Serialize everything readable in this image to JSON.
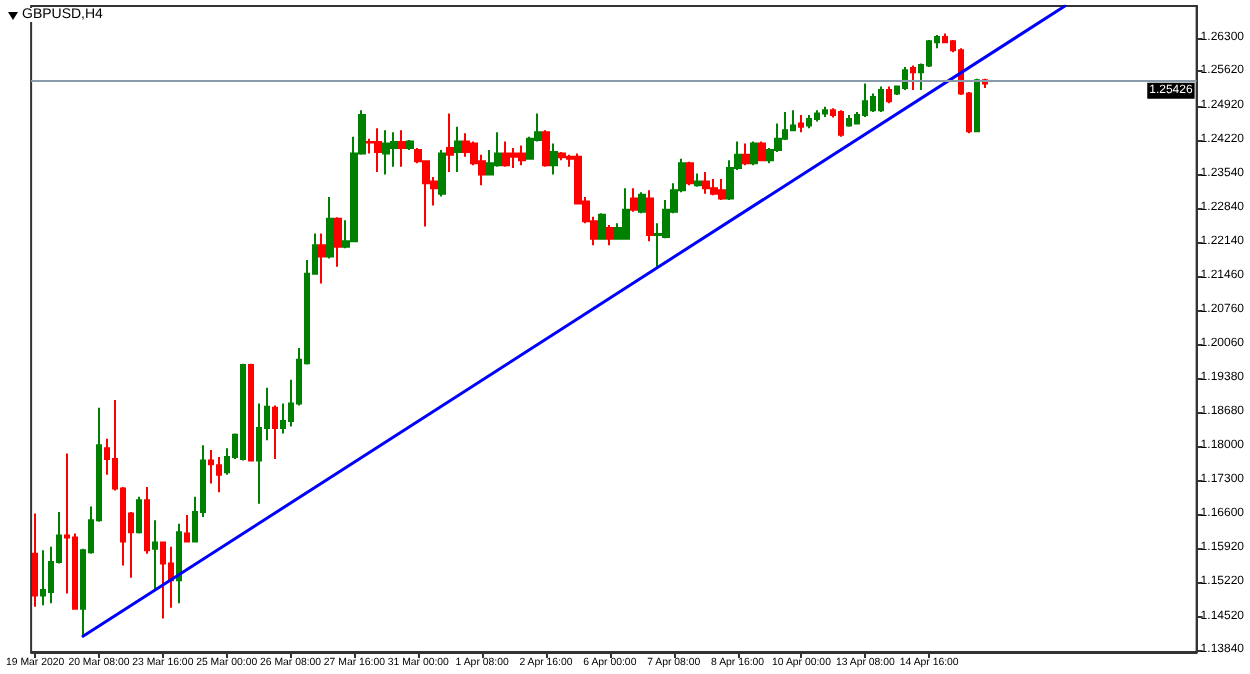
{
  "chart_data": {
    "type": "candlestick",
    "title": "GBPUSD,H4",
    "categories": [
      "19 Mar 2020",
      null,
      null,
      null,
      null,
      null,
      null,
      null,
      "20 Mar 08:00",
      null,
      null,
      null,
      null,
      null,
      null,
      null,
      "23 Mar 16:00",
      null,
      null,
      null,
      null,
      null,
      null,
      null,
      "25 Mar 00:00",
      null,
      null,
      null,
      null,
      null,
      null,
      null,
      "26 Mar 08:00",
      null,
      null,
      null,
      null,
      null,
      null,
      null,
      "27 Mar 16:00",
      null,
      null,
      null,
      null,
      null,
      null,
      null,
      "31 Mar 00:00",
      null,
      null,
      null,
      null,
      null,
      null,
      null,
      "1 Apr 08:00",
      null,
      null,
      null,
      null,
      null,
      null,
      null,
      "2 Apr 16:00",
      null,
      null,
      null,
      null,
      null,
      null,
      null,
      "6 Apr 00:00",
      null,
      null,
      null,
      null,
      null,
      null,
      null,
      "7 Apr 08:00",
      null,
      null,
      null,
      null,
      null,
      null,
      null,
      "8 Apr 16:00",
      null,
      null,
      null,
      null,
      null,
      null,
      null,
      "10 Apr 00:00",
      null,
      null,
      null,
      null,
      null,
      null,
      null,
      "13 Apr 08:00",
      null,
      null,
      null,
      null,
      null,
      null,
      null,
      "14 Apr 16:00",
      null,
      null,
      null,
      null,
      null,
      null,
      null,
      null,
      null,
      null,
      null,
      null,
      null,
      null,
      null,
      null,
      null,
      null,
      null,
      null,
      null,
      null,
      null,
      null,
      null,
      null,
      null,
      null,
      null,
      null,
      null,
      null,
      null
    ],
    "series": [
      {
        "type": "candlestick",
        "colors": [
          "#ff0000",
          "#008000",
          "#008000",
          "#008000",
          "#ff0000",
          "#ff0000",
          "#008000",
          "#008000",
          "#008000",
          "#ff0000",
          "#ff0000",
          "#ff0000",
          "#ff0000",
          "#008000",
          "#ff0000",
          "#008000",
          "#ff0000",
          "#ff0000",
          "#008000",
          "#ff0000",
          "#008000",
          "#008000",
          "#ff0000",
          "#ff0000",
          "#008000",
          "#008000",
          "#008000",
          "#ff0000",
          "#008000",
          "#008000",
          "#ff0000",
          "#008000",
          "#008000",
          "#008000",
          "#008000",
          "#008000",
          "#ff0000",
          "#008000",
          "#ff0000",
          "#008000",
          "#008000",
          "#008000",
          "#ff0000",
          "#ff0000",
          "#008000",
          "#008000",
          "#ff0000",
          "#008000",
          "#ff0000",
          "#ff0000",
          "#ff0000",
          "#008000",
          "#ff0000",
          "#008000",
          "#ff0000",
          "#ff0000",
          "#ff0000",
          "#008000",
          "#008000",
          "#ff0000",
          "#ff0000",
          "#ff0000",
          "#008000",
          "#008000",
          "#ff0000",
          "#008000",
          "#ff0000",
          "#ff0000",
          "#ff0000",
          "#ff0000",
          "#ff0000",
          "#008000",
          "#ff0000",
          "#008000",
          "#008000",
          "#ff0000",
          "#008000",
          "#ff0000",
          "#008000",
          "#008000",
          "#008000",
          "#008000",
          "#ff0000",
          "#008000",
          "#ff0000",
          "#ff0000",
          "#ff0000",
          "#008000",
          "#008000",
          "#ff0000",
          "#008000",
          "#ff0000",
          "#008000",
          "#008000",
          "#008000",
          "#008000",
          "#ff0000",
          "#008000",
          "#008000",
          "#008000",
          "#ff0000",
          "#ff0000",
          "#008000",
          "#008000",
          "#008000",
          "#008000",
          "#008000",
          "#ff0000",
          "#008000",
          "#008000",
          "#ff0000",
          "#008000",
          "#008000",
          "#008000",
          "#ff0000",
          "#ff0000",
          "#ff0000",
          "#ff0000",
          "#008000",
          "#ff0000",
          null,
          null,
          null,
          null,
          null,
          null,
          null,
          null,
          null,
          null,
          null,
          null,
          null,
          null,
          null,
          null,
          null,
          null,
          null,
          null,
          null,
          null,
          null,
          null,
          null,
          null
        ],
        "ohlc": [
          [
            1.158,
            1.1662,
            1.1472,
            1.1495
          ],
          [
            1.1495,
            1.1587,
            1.1475,
            1.1506
          ],
          [
            1.1502,
            1.1594,
            1.1479,
            1.1563
          ],
          [
            1.1563,
            1.1665,
            1.156,
            1.1617
          ],
          [
            1.1617,
            1.1784,
            1.1499,
            1.1613
          ],
          [
            1.1613,
            1.1621,
            1.1466,
            1.1468
          ],
          [
            1.1468,
            1.159,
            1.1411,
            1.1587
          ],
          [
            1.1583,
            1.1676,
            1.158,
            1.1648
          ],
          [
            1.1648,
            1.1877,
            1.1645,
            1.1801
          ],
          [
            1.1795,
            1.1814,
            1.1741,
            1.1773
          ],
          [
            1.1773,
            1.1893,
            1.1709,
            1.1713
          ],
          [
            1.1713,
            1.1716,
            1.1556,
            1.1605
          ],
          [
            1.1662,
            1.1665,
            1.1531,
            1.1624
          ],
          [
            1.1624,
            1.1696,
            1.1621,
            1.1689
          ],
          [
            1.1689,
            1.1716,
            1.158,
            1.1587
          ],
          [
            1.159,
            1.1648,
            1.1506,
            1.1603
          ],
          [
            1.1603,
            1.1605,
            1.1448,
            1.156
          ],
          [
            1.156,
            1.1594,
            1.147,
            1.1526
          ],
          [
            1.1526,
            1.1641,
            1.1479,
            1.1624
          ],
          [
            1.1621,
            1.1659,
            1.1603,
            1.1605
          ],
          [
            1.1605,
            1.1696,
            1.1603,
            1.1665
          ],
          [
            1.1665,
            1.1801,
            1.1655,
            1.177
          ],
          [
            1.177,
            1.1791,
            1.1723,
            1.1762
          ],
          [
            1.176,
            1.1777,
            1.1705,
            1.1741
          ],
          [
            1.1746,
            1.1795,
            1.1741,
            1.1777
          ],
          [
            1.1777,
            1.1825,
            1.1773,
            1.1822
          ],
          [
            1.1773,
            1.1967,
            1.177,
            1.1964
          ],
          [
            1.1964,
            1.1967,
            1.1768,
            1.177
          ],
          [
            1.177,
            1.1886,
            1.1682,
            1.1836
          ],
          [
            1.1836,
            1.1918,
            1.1811,
            1.1879
          ],
          [
            1.1877,
            1.1882,
            1.1773,
            1.1836
          ],
          [
            1.1836,
            1.1886,
            1.1825,
            1.185
          ],
          [
            1.185,
            1.1934,
            1.1839,
            1.1886
          ],
          [
            1.1886,
            1.1999,
            1.1882,
            1.1975
          ],
          [
            1.1968,
            1.2178,
            1.1965,
            1.215
          ],
          [
            1.215,
            1.2232,
            1.2148,
            1.2208
          ],
          [
            1.2208,
            1.2232,
            1.213,
            1.2185
          ],
          [
            1.2185,
            1.2306,
            1.2181,
            1.2262
          ],
          [
            1.2262,
            1.2265,
            1.2164,
            1.2205
          ],
          [
            1.2205,
            1.2259,
            1.2202,
            1.2216
          ],
          [
            1.2216,
            1.2429,
            1.2214,
            1.2395
          ],
          [
            1.2395,
            1.2483,
            1.2392,
            1.2473
          ],
          [
            1.2418,
            1.2425,
            1.2395,
            1.2417
          ],
          [
            1.2418,
            1.2446,
            1.2357,
            1.2398
          ],
          [
            1.2395,
            1.2442,
            1.2352,
            1.2415
          ],
          [
            1.2406,
            1.2438,
            1.2368,
            1.2418
          ],
          [
            1.2418,
            1.2442,
            1.2368,
            1.2406
          ],
          [
            1.2406,
            1.2422,
            1.2402,
            1.2419
          ],
          [
            1.2402,
            1.2406,
            1.2375,
            1.2379
          ],
          [
            1.2379,
            1.2381,
            1.2246,
            1.2334
          ],
          [
            1.2338,
            1.2347,
            1.2289,
            1.2324
          ],
          [
            1.2313,
            1.2402,
            1.2307,
            1.2395
          ],
          [
            1.2406,
            1.2476,
            1.2357,
            1.2392
          ],
          [
            1.2398,
            1.2449,
            1.2357,
            1.2419
          ],
          [
            1.2419,
            1.2436,
            1.2388,
            1.2398
          ],
          [
            1.2415,
            1.2419,
            1.2371,
            1.2375
          ],
          [
            1.2379,
            1.2392,
            1.233,
            1.2352
          ],
          [
            1.2352,
            1.2402,
            1.235,
            1.2375
          ],
          [
            1.2371,
            1.2438,
            1.2368,
            1.2395
          ],
          [
            1.2395,
            1.2419,
            1.2368,
            1.2371
          ],
          [
            1.2395,
            1.2406,
            1.2365,
            1.2388
          ],
          [
            1.2395,
            1.2411,
            1.2371,
            1.2381
          ],
          [
            1.2384,
            1.2429,
            1.2382,
            1.2425
          ],
          [
            1.2422,
            1.2476,
            1.2419,
            1.2438
          ],
          [
            1.2438,
            1.2442,
            1.2368,
            1.2371
          ],
          [
            1.2371,
            1.2415,
            1.2352,
            1.2398
          ],
          [
            1.2395,
            1.2398,
            1.2381,
            1.2387
          ],
          [
            1.2388,
            1.2392,
            1.2368,
            1.2384
          ],
          [
            1.2388,
            1.2395,
            1.2291,
            1.2293
          ],
          [
            1.2297,
            1.2306,
            1.2253,
            1.2257
          ],
          [
            1.2257,
            1.2266,
            1.2208,
            1.2221
          ],
          [
            1.2221,
            1.2273,
            1.2219,
            1.227
          ],
          [
            1.2243,
            1.2249,
            1.2208,
            1.2221
          ],
          [
            1.2221,
            1.2253,
            1.2219,
            1.2243
          ],
          [
            1.2221,
            1.2324,
            1.2219,
            1.228
          ],
          [
            1.2303,
            1.2324,
            1.2276,
            1.228
          ],
          [
            1.2276,
            1.2316,
            1.2273,
            1.2311
          ],
          [
            1.2303,
            1.232,
            1.2216,
            1.2229
          ],
          [
            1.2229,
            1.2253,
            1.2164,
            1.2231
          ],
          [
            1.2225,
            1.23,
            1.2222,
            1.228
          ],
          [
            1.2276,
            1.2334,
            1.2273,
            1.232
          ],
          [
            1.232,
            1.2384,
            1.2316,
            1.2375
          ],
          [
            1.2375,
            1.2378,
            1.233,
            1.2334
          ],
          [
            1.233,
            1.2354,
            1.2327,
            1.2338
          ],
          [
            1.2338,
            1.2357,
            1.2313,
            1.2324
          ],
          [
            1.2324,
            1.2343,
            1.231,
            1.2313
          ],
          [
            1.232,
            1.2343,
            1.23,
            1.2303
          ],
          [
            1.2303,
            1.2381,
            1.23,
            1.2365
          ],
          [
            1.2365,
            1.2419,
            1.2361,
            1.2392
          ],
          [
            1.2392,
            1.2415,
            1.2371,
            1.2375
          ],
          [
            1.2375,
            1.2419,
            1.2371,
            1.2415
          ],
          [
            1.2415,
            1.2419,
            1.2379,
            1.2381
          ],
          [
            1.2381,
            1.2406,
            1.2375,
            1.2402
          ],
          [
            1.2402,
            1.2456,
            1.2398,
            1.2425
          ],
          [
            1.2425,
            1.2479,
            1.2422,
            1.2442
          ],
          [
            1.2442,
            1.2483,
            1.2441,
            1.2452
          ],
          [
            1.2456,
            1.2473,
            1.2438,
            1.2449
          ],
          [
            1.2452,
            1.2473,
            1.2446,
            1.2465
          ],
          [
            1.2465,
            1.2483,
            1.246,
            1.2476
          ],
          [
            1.2476,
            1.249,
            1.2469,
            1.2483
          ],
          [
            1.2483,
            1.2487,
            1.2468,
            1.2473
          ],
          [
            1.2479,
            1.2483,
            1.2429,
            1.2433
          ],
          [
            1.2452,
            1.2473,
            1.2449,
            1.2465
          ],
          [
            1.2456,
            1.2479,
            1.2455,
            1.2473
          ],
          [
            1.2473,
            1.2537,
            1.2469,
            1.2501
          ],
          [
            1.2483,
            1.2517,
            1.2479,
            1.251
          ],
          [
            1.2483,
            1.2531,
            1.2479,
            1.2524
          ],
          [
            1.2524,
            1.2531,
            1.2497,
            1.2501
          ],
          [
            1.2517,
            1.2533,
            1.2514,
            1.2531
          ],
          [
            1.2528,
            1.2571,
            1.2524,
            1.2564
          ],
          [
            1.2569,
            1.2574,
            1.2524,
            1.256
          ],
          [
            1.256,
            1.2578,
            1.2524,
            1.2575
          ],
          [
            1.2574,
            1.2626,
            1.2571,
            1.2623
          ],
          [
            1.2621,
            1.2636,
            1.2609,
            1.2632
          ],
          [
            1.2632,
            1.2639,
            1.2619,
            1.2621
          ],
          [
            1.2623,
            1.2626,
            1.2601,
            1.2605
          ],
          [
            1.2605,
            1.2609,
            1.2514,
            1.2517
          ],
          [
            1.2517,
            1.252,
            1.2436,
            1.244
          ],
          [
            1.244,
            1.2547,
            1.2438,
            1.2544
          ],
          [
            1.2544,
            1.2547,
            1.2528,
            1.2537
          ],
          null,
          null,
          null,
          null,
          null,
          null,
          null,
          null,
          null,
          null,
          null,
          null,
          null,
          null,
          null,
          null,
          null,
          null,
          null,
          null,
          null,
          null,
          null,
          null,
          null,
          null
        ]
      },
      {
        "type": "line",
        "color": "#0000ff",
        "values": [
          null,
          null,
          null,
          null,
          null,
          null,
          1.1412,
          null,
          null,
          null,
          null,
          null,
          null,
          null,
          null,
          null,
          null,
          null,
          null,
          null,
          null,
          null,
          null,
          null,
          null,
          null,
          null,
          null,
          null,
          null,
          null,
          null,
          null,
          null,
          null,
          null,
          null,
          null,
          null,
          null,
          null,
          null,
          null,
          null,
          null,
          null,
          null,
          null,
          null,
          null,
          null,
          null,
          null,
          null,
          null,
          null,
          null,
          null,
          null,
          null,
          null,
          null,
          null,
          null,
          null,
          null,
          null,
          null,
          null,
          null,
          null,
          null,
          null,
          null,
          null,
          null,
          null,
          null,
          null,
          null,
          null,
          null,
          null,
          null,
          null,
          null,
          null,
          null,
          null,
          null,
          null,
          null,
          null,
          null,
          null,
          null,
          null,
          null,
          null,
          null,
          null,
          null,
          null,
          null,
          null,
          null,
          null,
          null,
          null,
          null,
          null,
          null,
          null,
          null,
          null,
          null,
          null,
          null,
          null,
          null,
          null,
          null,
          null,
          null,
          null,
          null,
          null,
          null,
          null,
          1.2695,
          null,
          null,
          null,
          null,
          null,
          null,
          null,
          null,
          null,
          null,
          null,
          null,
          null,
          null,
          null,
          null
        ]
      }
    ],
    "ylim": [
      1.138,
      1.2695
    ],
    "yticks": [
      {
        "value": 1.1384,
        "label": "1.13840"
      },
      {
        "value": 1.1452,
        "label": "1.14520"
      },
      {
        "value": 1.1522,
        "label": "1.15220"
      },
      {
        "value": 1.1592,
        "label": "1.15920"
      },
      {
        "value": 1.166,
        "label": "1.16600"
      },
      {
        "value": 1.173,
        "label": "1.17300"
      },
      {
        "value": 1.18,
        "label": "1.18000"
      },
      {
        "value": 1.1868,
        "label": "1.18680"
      },
      {
        "value": 1.1938,
        "label": "1.19380"
      },
      {
        "value": 1.2006,
        "label": "1.20060"
      },
      {
        "value": 1.2076,
        "label": "1.20760"
      },
      {
        "value": 1.2146,
        "label": "1.21460"
      },
      {
        "value": 1.2214,
        "label": "1.22140"
      },
      {
        "value": 1.2284,
        "label": "1.22840"
      },
      {
        "value": 1.2354,
        "label": "1.23540"
      },
      {
        "value": 1.2422,
        "label": "1.24220"
      },
      {
        "value": 1.2492,
        "label": "1.24920"
      },
      {
        "value": 1.2562,
        "label": "1.25620"
      },
      {
        "value": 1.263,
        "label": "1.26300"
      }
    ],
    "ref_lines": [
      {
        "axis": "y",
        "value": 1.25426,
        "label": "1.25426",
        "color": "#8a9bab"
      }
    ]
  }
}
